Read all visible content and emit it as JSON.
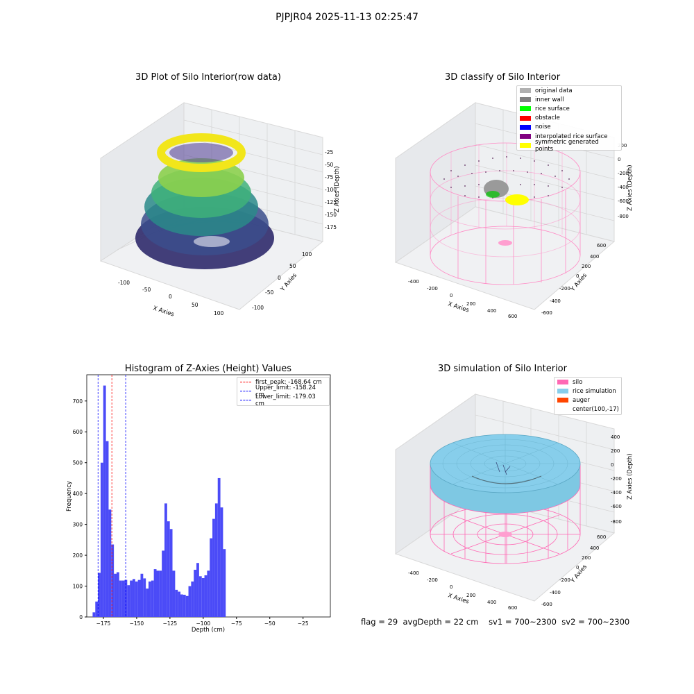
{
  "figure": {
    "suptitle": "PJPJR04 2025-11-13 02:25:47",
    "status_line": {
      "flag": "flag = 29",
      "avg_depth": "avgDepth = 22 cm",
      "sv1": "sv1 = 700~2300",
      "sv2": "sv2 = 700~2300"
    }
  },
  "panels": {
    "raw": {
      "title": "3D Plot of Silo Interior(row data)",
      "xlabel": "X Axies",
      "ylabel": "Y Axies",
      "zlabel": "Z Axies (Depth)",
      "xticks": [
        "-100",
        "-50",
        "0",
        "50",
        "100"
      ],
      "yticks": [
        "-100",
        "-50",
        "0",
        "50",
        "100"
      ],
      "zticks": [
        "-25",
        "-50",
        "-75",
        "-100",
        "-125",
        "-150",
        "-175"
      ]
    },
    "classify": {
      "title": "3D classify of Silo Interior",
      "xlabel": "X Axies",
      "ylabel": "Y Axies",
      "zlabel": "Z Axies (Depth)",
      "xticks": [
        "-400",
        "-200",
        "0",
        "200",
        "400",
        "600"
      ],
      "yticks": [
        "-600",
        "-400",
        "-200",
        "0",
        "200",
        "400",
        "600"
      ],
      "zticks": [
        "200",
        "0",
        "-200",
        "-400",
        "-600",
        "-800"
      ],
      "legend": [
        {
          "label": "original data",
          "color": "#b0b0b0"
        },
        {
          "label": "inner wall",
          "color": "#808080"
        },
        {
          "label": "rice surface",
          "color": "#00ff00"
        },
        {
          "label": "obstacle",
          "color": "#ff0000"
        },
        {
          "label": "noise",
          "color": "#0000ff"
        },
        {
          "label": "interpolated rice surface",
          "color": "#800080"
        },
        {
          "label": "symmetric generated points",
          "color": "#ffff00"
        }
      ]
    },
    "simulation": {
      "title": "3D simulation of Silo Interior",
      "xlabel": "X Axies",
      "ylabel": "Y Axies",
      "zlabel": "Z Axies (Depth)",
      "xticks": [
        "-400",
        "-200",
        "0",
        "200",
        "400",
        "600"
      ],
      "yticks": [
        "-600",
        "-400",
        "-200",
        "0",
        "200",
        "400",
        "600"
      ],
      "zticks": [
        "400",
        "200",
        "0",
        "-200",
        "-400",
        "-600",
        "-800"
      ],
      "legend": [
        {
          "label": "silo",
          "color": "#ff69b4"
        },
        {
          "label": "rice simulation",
          "color": "#87ceeb"
        },
        {
          "label": "auger",
          "color": "#ff4500"
        },
        {
          "label": "center(100,-17)",
          "color": ""
        }
      ]
    }
  },
  "chart_data": {
    "type": "bar",
    "title": "Histogram of Z-Axies (Height) Values",
    "xlabel": "Depth (cm)",
    "ylabel": "Frequency",
    "bar_color": "#4b4bf7",
    "xlim": [
      -187.5,
      -4.5
    ],
    "ylim": [
      0,
      785
    ],
    "xticks": [
      -175,
      -150,
      -125,
      -100,
      -75,
      -50,
      -25
    ],
    "xtick_labels": [
      "−175",
      "−150",
      "−125",
      "−100",
      "−75",
      "−50",
      "−25"
    ],
    "yticks": [
      0,
      100,
      200,
      300,
      400,
      500,
      600,
      700
    ],
    "bin_start": -183.1,
    "bin_width": 2.0,
    "values": [
      15,
      50,
      143,
      500,
      750,
      570,
      348,
      235,
      140,
      145,
      118,
      118,
      120,
      103,
      118,
      123,
      115,
      120,
      140,
      125,
      92,
      115,
      118,
      155,
      150,
      150,
      215,
      368,
      310,
      285,
      150,
      88,
      82,
      73,
      72,
      68,
      100,
      115,
      153,
      175,
      132,
      126,
      135,
      150,
      255,
      318,
      368,
      450,
      355,
      220
    ],
    "lines": [
      {
        "label": "first_peak: -168.64 cm",
        "x": -168.64,
        "color": "#ff0000"
      },
      {
        "label": "Upper_limit: -158.24 cm",
        "x": -158.24,
        "color": "#0000ff"
      },
      {
        "label": "Lower_limit: -179.03 cm",
        "x": -179.03,
        "color": "#0000ff"
      }
    ],
    "legend_position": "upper right"
  }
}
